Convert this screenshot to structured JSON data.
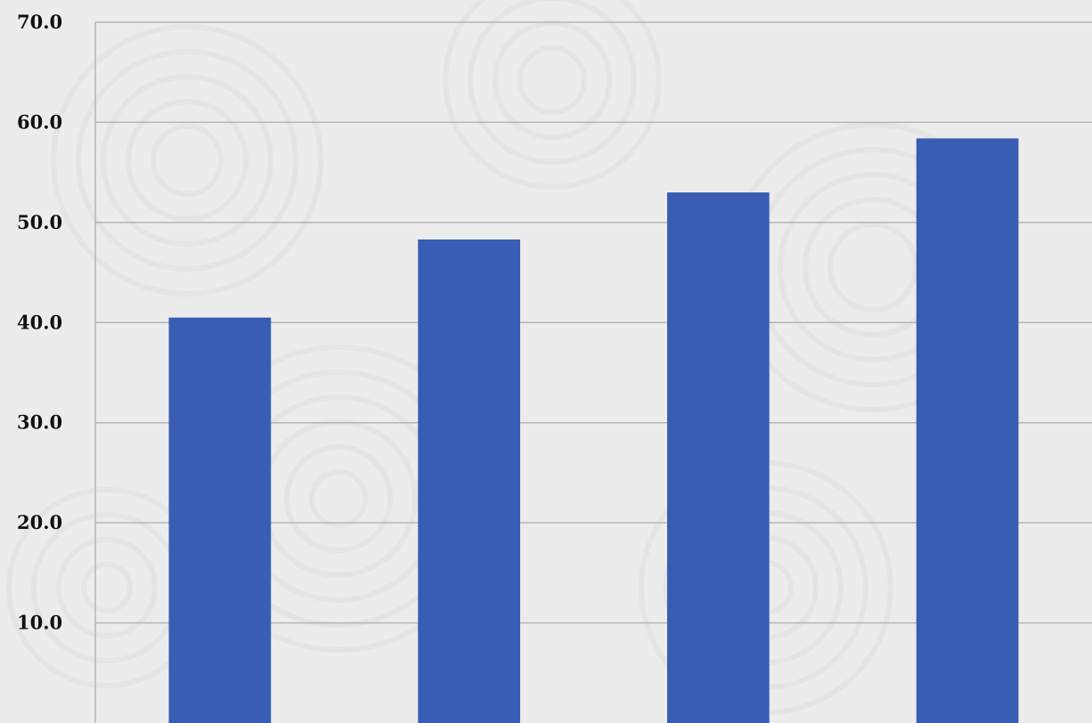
{
  "chart_data": {
    "type": "bar",
    "categories": [
      "",
      "",
      "",
      ""
    ],
    "values": [
      40.5,
      48.3,
      53.0,
      58.4
    ],
    "title": "",
    "xlabel": "",
    "ylabel": "",
    "ylim": [
      0,
      70
    ],
    "yticks": [
      "10.0",
      "20.0",
      "30.0",
      "40.0",
      "50.0",
      "60.0",
      "70.0"
    ],
    "grid": true,
    "legend": "none"
  },
  "colors": {
    "bar": "#385DB3",
    "gridline": "#b5b5b5",
    "axis": "#b5b5b5",
    "background": "#ececec",
    "pattern": "#dedede"
  }
}
